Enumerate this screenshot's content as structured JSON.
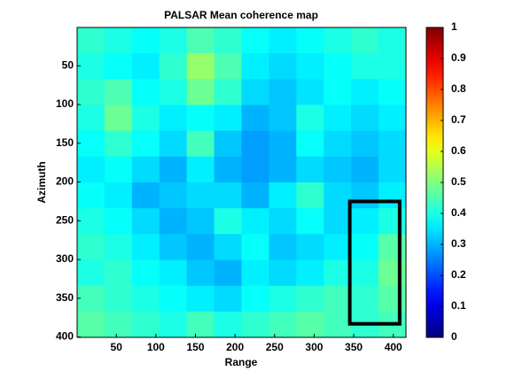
{
  "chart_data": {
    "type": "heatmap",
    "title": "PALSAR Mean coherence map",
    "xlabel": "Range",
    "ylabel": "Azimuth",
    "xlim": [
      0.5,
      416
    ],
    "ylim": [
      0.5,
      400.5
    ],
    "y_reversed": true,
    "xticks": [
      50,
      100,
      150,
      200,
      250,
      300,
      350,
      400
    ],
    "yticks": [
      50,
      100,
      150,
      200,
      250,
      300,
      350,
      400
    ],
    "clim": [
      0,
      1
    ],
    "colormap": "jet",
    "cticks": [
      0,
      0.1,
      0.2,
      0.3,
      0.4,
      0.5,
      0.6,
      0.7,
      0.8,
      0.9,
      1
    ],
    "z": [
      [
        0.42,
        0.4,
        0.38,
        0.4,
        0.45,
        0.42,
        0.38,
        0.36,
        0.38,
        0.4,
        0.42,
        0.4
      ],
      [
        0.4,
        0.38,
        0.36,
        0.42,
        0.52,
        0.45,
        0.36,
        0.34,
        0.36,
        0.38,
        0.4,
        0.4
      ],
      [
        0.42,
        0.45,
        0.38,
        0.4,
        0.48,
        0.42,
        0.34,
        0.32,
        0.35,
        0.38,
        0.36,
        0.38
      ],
      [
        0.4,
        0.48,
        0.4,
        0.36,
        0.38,
        0.36,
        0.3,
        0.32,
        0.4,
        0.36,
        0.34,
        0.36
      ],
      [
        0.38,
        0.42,
        0.38,
        0.34,
        0.44,
        0.32,
        0.28,
        0.3,
        0.38,
        0.34,
        0.32,
        0.34
      ],
      [
        0.36,
        0.38,
        0.34,
        0.3,
        0.36,
        0.3,
        0.28,
        0.3,
        0.34,
        0.32,
        0.3,
        0.34
      ],
      [
        0.38,
        0.36,
        0.3,
        0.32,
        0.34,
        0.34,
        0.3,
        0.36,
        0.42,
        0.34,
        0.32,
        0.36
      ],
      [
        0.4,
        0.38,
        0.34,
        0.3,
        0.32,
        0.4,
        0.36,
        0.34,
        0.38,
        0.34,
        0.36,
        0.4
      ],
      [
        0.42,
        0.4,
        0.36,
        0.32,
        0.3,
        0.34,
        0.38,
        0.32,
        0.34,
        0.36,
        0.38,
        0.46
      ],
      [
        0.4,
        0.42,
        0.38,
        0.36,
        0.32,
        0.3,
        0.36,
        0.34,
        0.36,
        0.4,
        0.4,
        0.48
      ],
      [
        0.44,
        0.42,
        0.4,
        0.38,
        0.36,
        0.34,
        0.38,
        0.4,
        0.42,
        0.44,
        0.42,
        0.46
      ],
      [
        0.46,
        0.44,
        0.42,
        0.4,
        0.44,
        0.4,
        0.42,
        0.44,
        0.46,
        0.44,
        0.42,
        0.44
      ]
    ],
    "highlight_box": {
      "x": [
        345,
        408
      ],
      "y": [
        225,
        383
      ]
    }
  }
}
